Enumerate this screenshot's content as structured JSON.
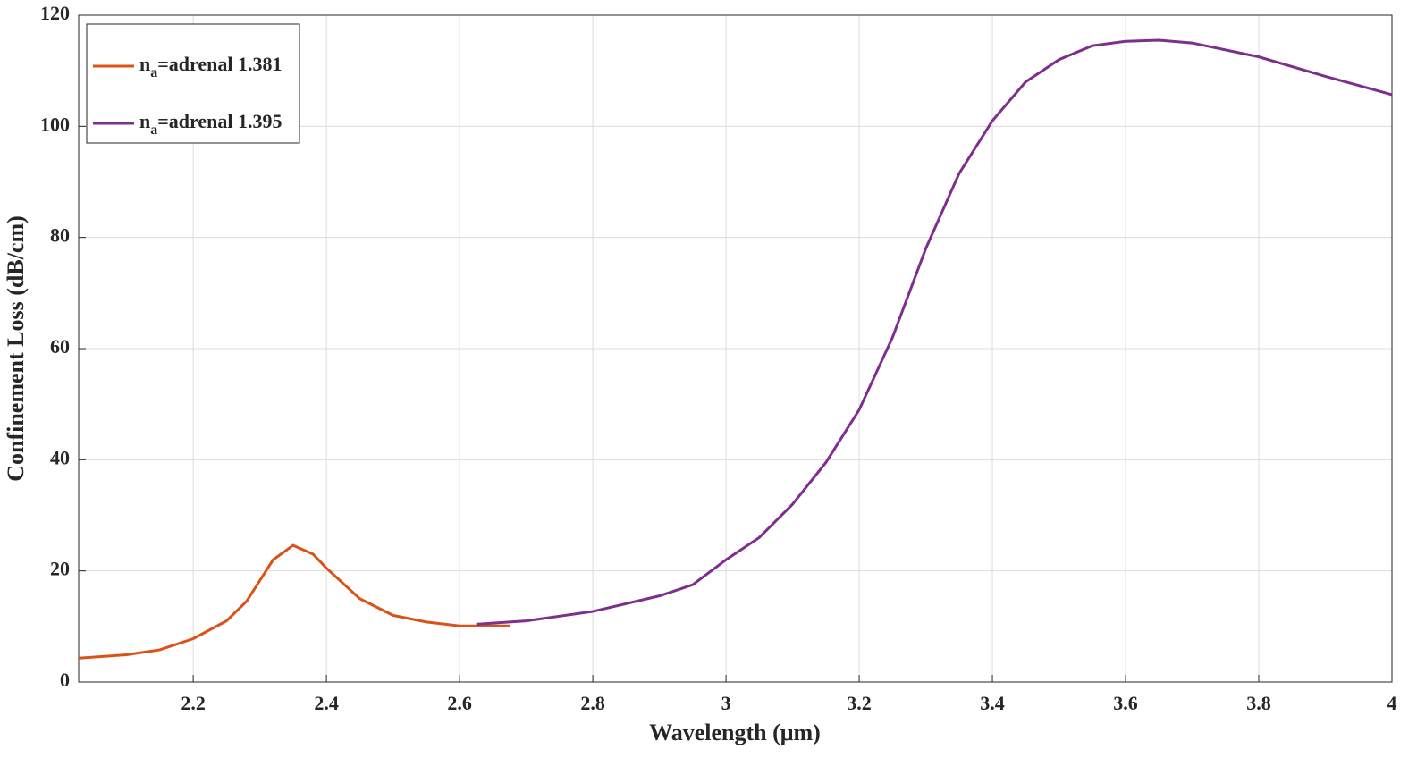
{
  "chart_data": {
    "type": "line",
    "xlabel": "Wavelength (μm)",
    "ylabel": "Confinement Loss (dB/cm)",
    "xlim": [
      2.028,
      4
    ],
    "ylim": [
      0,
      120
    ],
    "xticks": [
      2.2,
      2.4,
      2.6,
      2.8,
      3,
      3.2,
      3.4,
      3.6,
      3.8,
      4
    ],
    "yticks": [
      0,
      20,
      40,
      60,
      80,
      100,
      120
    ],
    "grid": true,
    "legend": "upper left",
    "series": [
      {
        "name": "na=adrenal 1.381",
        "color": "#d95319",
        "x": [
          2.028,
          2.1,
          2.15,
          2.2,
          2.25,
          2.28,
          2.32,
          2.35,
          2.38,
          2.4,
          2.45,
          2.5,
          2.55,
          2.6,
          2.675
        ],
        "values": [
          4.3,
          4.9,
          5.8,
          7.8,
          11,
          14.5,
          22,
          24.6,
          23,
          20.5,
          15,
          12,
          10.8,
          10.1,
          10.1
        ]
      },
      {
        "name": "na=adrenal 1.395",
        "color": "#7e2f8e",
        "x": [
          2.625,
          2.7,
          2.8,
          2.9,
          2.95,
          3.0,
          3.05,
          3.1,
          3.15,
          3.2,
          3.25,
          3.3,
          3.35,
          3.4,
          3.45,
          3.5,
          3.55,
          3.6,
          3.65,
          3.7,
          3.8,
          3.9,
          4
        ],
        "values": [
          10.4,
          11,
          12.7,
          15.5,
          17.5,
          22,
          26,
          32,
          39.5,
          49,
          62,
          78,
          91.5,
          101,
          108,
          112,
          114.5,
          115.3,
          115.5,
          115,
          112.5,
          109,
          105.7
        ]
      }
    ]
  }
}
